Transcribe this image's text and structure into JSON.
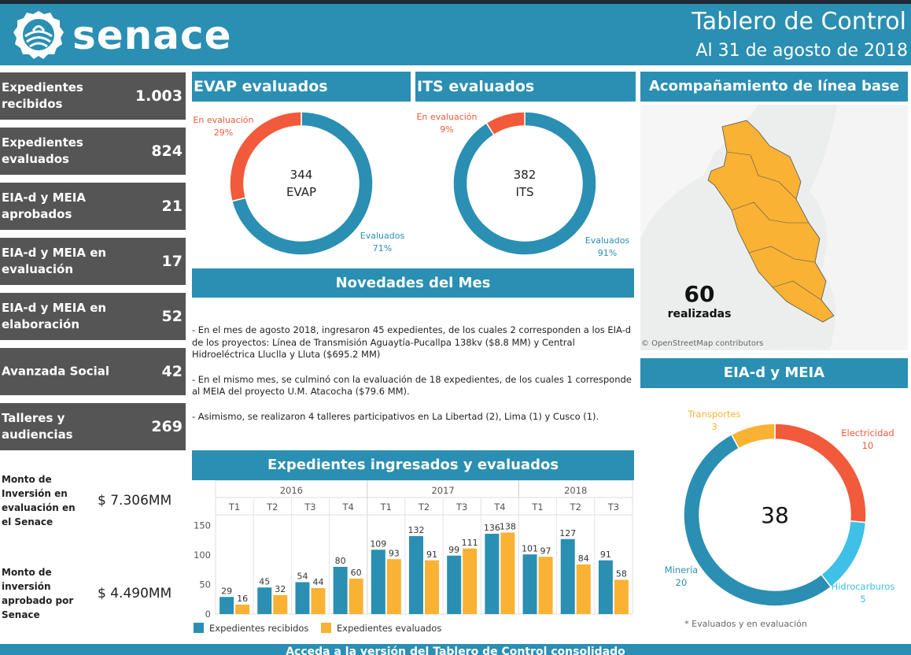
{
  "header": {
    "logo_text": "senace",
    "title": "Tablero de Control",
    "subtitle": "Al 31 de agosto de 2018"
  },
  "kpis": [
    {
      "label": "Expedientes recibidos",
      "value": "1.003"
    },
    {
      "label": "Expedientes evaluados",
      "value": "824"
    },
    {
      "label": "EIA-d y MEIA aprobados",
      "value": "21"
    },
    {
      "label": "EIA-d y MEIA en evaluación",
      "value": "17"
    },
    {
      "label": "EIA-d y MEIA en elaboración",
      "value": "52"
    },
    {
      "label": "Avanzada Social",
      "value": "42"
    },
    {
      "label": "Talleres y audiencias",
      "value": "269"
    }
  ],
  "money": [
    {
      "label": "Monto de Inversión en evaluación en el Senace",
      "value": "$ 7.306MM"
    },
    {
      "label": "Monto de inversión aprobado por Senace",
      "value": "$ 4.490MM"
    }
  ],
  "evap": {
    "title": "EVAP evaluados",
    "center_value": "344",
    "center_label": "EVAP",
    "slices": [
      {
        "label": "En evaluación",
        "pct_label": "29%",
        "value": 29,
        "color": "#f15a3a"
      },
      {
        "label": "Evaluados",
        "pct_label": "71%",
        "value": 71,
        "color": "#2a8fb2"
      }
    ]
  },
  "its": {
    "title": "ITS evaluados",
    "center_value": "382",
    "center_label": "ITS",
    "slices": [
      {
        "label": "En evaluación",
        "pct_label": "9%",
        "value": 9,
        "color": "#f15a3a"
      },
      {
        "label": "Evaluados",
        "pct_label": "91%",
        "value": 91,
        "color": "#2a8fb2"
      }
    ]
  },
  "map": {
    "title": "Acompañamiento de línea base",
    "count": "60",
    "count_label": "realizadas",
    "attribution": "© OpenStreetMap contributors"
  },
  "novedades": {
    "title": "Novedades del Mes",
    "paragraphs": [
      "- En el mes de agosto 2018, ingresaron 45 expedientes, de los cuales 2 corresponden a los EIA-d de los proyectos: Línea de Transmisión Aguaytía-Pucallpa 138kv ($8.8 MM) y Central Hidroeléctrica Lluclla y Lluta ($695.2 MM)",
      "- En el mismo mes, se culminó con la evaluación de 18 expedientes, de los cuales 1 corresponde al MEIA del proyecto U.M. Atacocha ($79.6 MM).",
      "- Asimismo, se realizaron 4 talleres participativos en La Libertad (2), Lima (1) y Cusco (1)."
    ]
  },
  "eia": {
    "title": "EIA-d  y MEIA",
    "center_value": "38",
    "note": "* Evaluados y en evaluación",
    "slices": [
      {
        "label": "Electricidad",
        "value": 10,
        "value_label": "10",
        "color": "#f15a3a"
      },
      {
        "label": "Hidrocarburos",
        "value": 5,
        "value_label": "5",
        "color": "#3fc0e6"
      },
      {
        "label": "Minería",
        "value": 20,
        "value_label": "20",
        "color": "#2a8fb2"
      },
      {
        "label": "Transportes",
        "value": 3,
        "value_label": "3",
        "color": "#f9b233"
      }
    ]
  },
  "chart_data": {
    "type": "bar",
    "title": "Expedientes ingresados y evaluados",
    "years": [
      {
        "label": "2016",
        "span": 4
      },
      {
        "label": "2017",
        "span": 4
      },
      {
        "label": "2018",
        "span": 3
      }
    ],
    "categories": [
      "T1",
      "T2",
      "T3",
      "T4",
      "T1",
      "T2",
      "T3",
      "T4",
      "T1",
      "T2",
      "T3"
    ],
    "series": [
      {
        "name": "Expedientes recibidos",
        "color": "#2a8fb2",
        "values": [
          29,
          45,
          54,
          80,
          109,
          132,
          99,
          136,
          101,
          127,
          91
        ]
      },
      {
        "name": "Expedientes evaluados",
        "color": "#f9b233",
        "values": [
          16,
          32,
          44,
          60,
          93,
          91,
          111,
          138,
          97,
          84,
          58
        ]
      }
    ],
    "yticks": [
      "0",
      "50",
      "100",
      "150"
    ],
    "ylim": [
      0,
      160
    ],
    "legend": "bottom-left"
  },
  "footer": {
    "text": "Acceda a la versión del Tablero de Control consolidado"
  }
}
